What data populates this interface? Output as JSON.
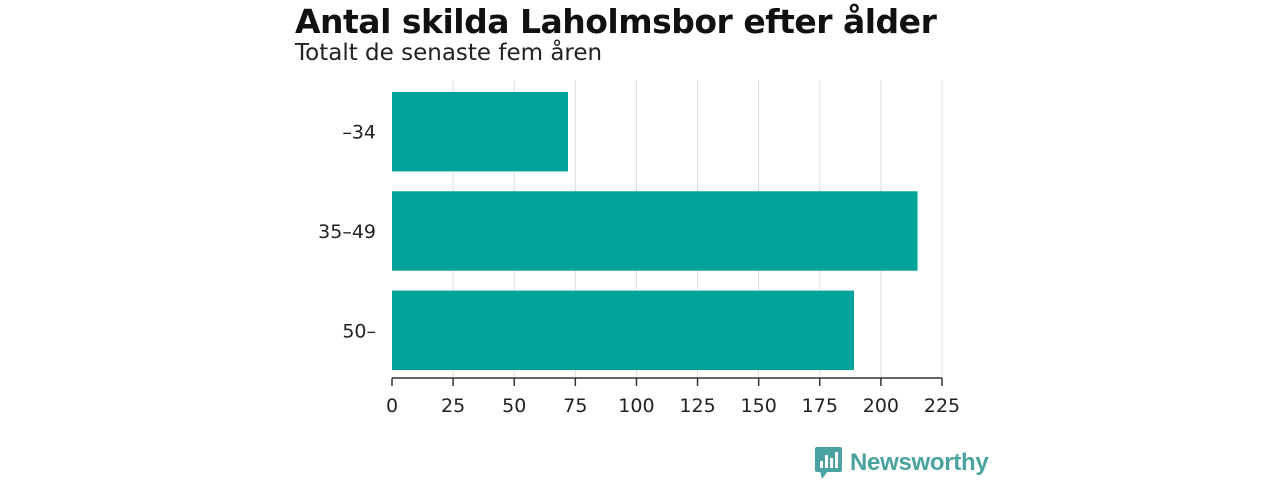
{
  "chart_data": {
    "type": "bar",
    "orientation": "horizontal",
    "title": "Antal skilda Laholmsbor efter ålder",
    "subtitle": "Totalt de senaste fem åren",
    "categories": [
      "–34",
      "35–49",
      "50–"
    ],
    "values": [
      72,
      215,
      189
    ],
    "xlim": [
      0,
      225
    ],
    "x_ticks": [
      "0",
      "25",
      "50",
      "75",
      "100",
      "125",
      "150",
      "175",
      "200",
      "225"
    ],
    "grid": true,
    "legend": "none",
    "bar_color": "#00a39a"
  },
  "branding": {
    "logo_text": "Newsworthy",
    "logo_color": "#4aa3a0",
    "logo_icon": "bar-chart-speech-bubble-icon"
  }
}
